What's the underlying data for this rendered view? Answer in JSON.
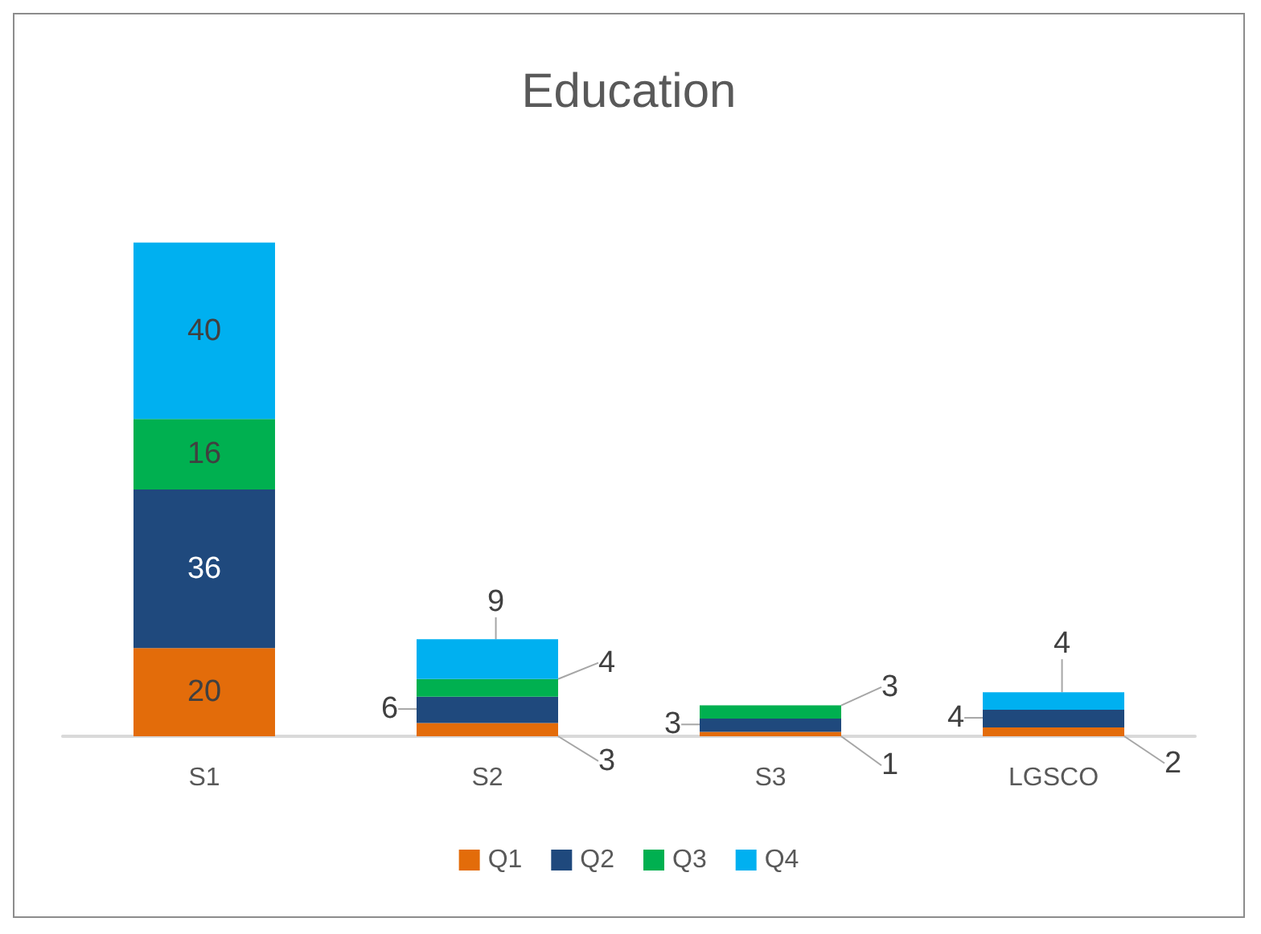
{
  "chart_data": {
    "type": "bar",
    "title": "Education",
    "categories": [
      "S1",
      "S2",
      "S3",
      "LGSCO"
    ],
    "stacked": true,
    "data_labels": true,
    "legend": "bottom",
    "series": [
      {
        "name": "Q1",
        "color": "#e36c0a",
        "values": [
          20,
          3,
          1,
          2
        ]
      },
      {
        "name": "Q2",
        "color": "#1f497d",
        "values": [
          36,
          6,
          3,
          4
        ]
      },
      {
        "name": "Q3",
        "color": "#00b050",
        "values": [
          16,
          4,
          3,
          null
        ]
      },
      {
        "name": "Q4",
        "color": "#00b0f0",
        "values": [
          40,
          9,
          null,
          4
        ]
      }
    ]
  }
}
